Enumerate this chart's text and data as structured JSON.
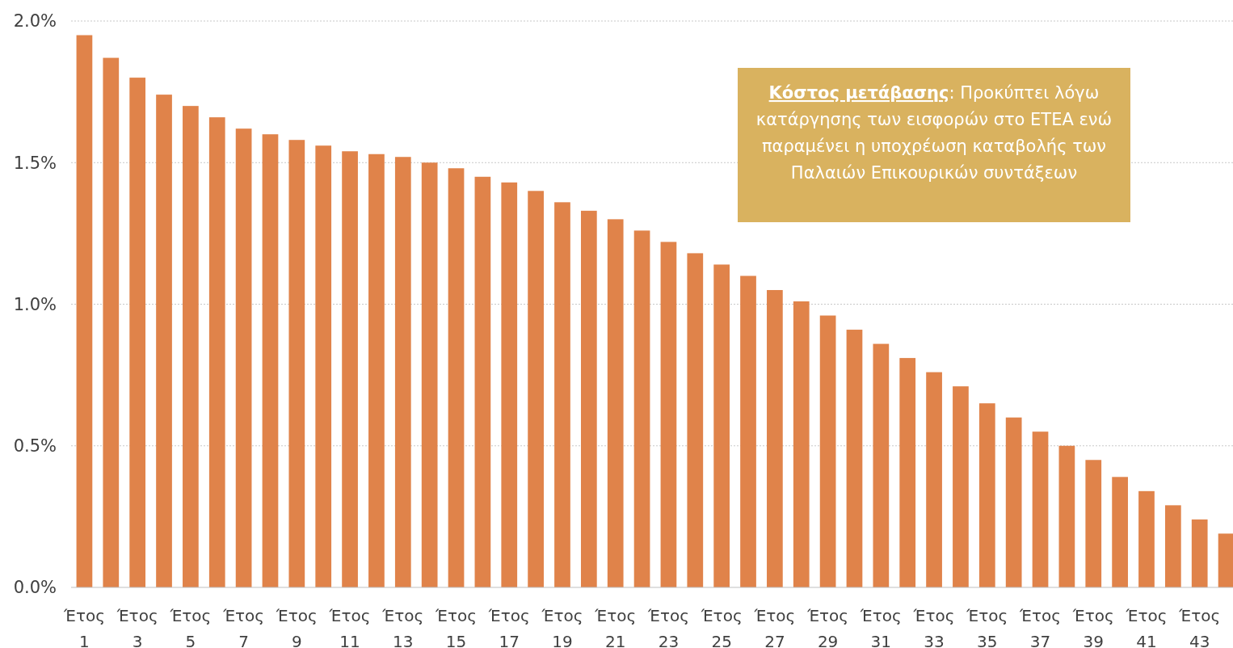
{
  "chart_data": {
    "type": "bar",
    "categories": [
      "Έτος 1",
      null,
      "Έτος 3",
      null,
      "Έτος 5",
      null,
      "Έτος 7",
      null,
      "Έτος 9",
      null,
      "Έτος 11",
      null,
      "Έτος 13",
      null,
      "Έτος 15",
      null,
      "Έτος 17",
      null,
      "Έτος 19",
      null,
      "Έτος 21",
      null,
      "Έτος 23",
      null,
      "Έτος 25",
      null,
      "Έτος 27",
      null,
      "Έτος 29",
      null,
      "Έτος 31",
      null,
      "Έτος 33",
      null,
      "Έτος 35",
      null,
      "Έτος 37",
      null,
      "Έτος 39",
      null,
      "Έτος 41",
      null,
      "Έτος 43",
      null
    ],
    "values": [
      1.95,
      1.87,
      1.8,
      1.74,
      1.7,
      1.66,
      1.62,
      1.6,
      1.58,
      1.56,
      1.54,
      1.53,
      1.52,
      1.5,
      1.48,
      1.45,
      1.43,
      1.4,
      1.36,
      1.33,
      1.3,
      1.26,
      1.22,
      1.18,
      1.14,
      1.1,
      1.05,
      1.01,
      0.96,
      0.91,
      0.86,
      0.81,
      0.76,
      0.71,
      0.65,
      0.6,
      0.55,
      0.5,
      0.45,
      0.39,
      0.34,
      0.29,
      0.24,
      0.19
    ],
    "color": "#e0834a",
    "ylim": [
      0,
      2
    ],
    "yticks": [
      {
        "value": 0,
        "label": "0.0%"
      },
      {
        "value": 0.5,
        "label": "0.5%"
      },
      {
        "value": 1,
        "label": "1.0%"
      },
      {
        "value": 1.5,
        "label": "1.5%"
      },
      {
        "value": 2,
        "label": "2.0%"
      }
    ],
    "grid": "y",
    "annotations": [
      "Κόστος μετάβασης: Προκύπτει λόγω κατάργησης των εισφορών στο ΕΤΕΑ ενώ παραμένει η υποχρέωση καταβολής των Παλαιών Επικουρικών συντάξεων"
    ]
  }
}
